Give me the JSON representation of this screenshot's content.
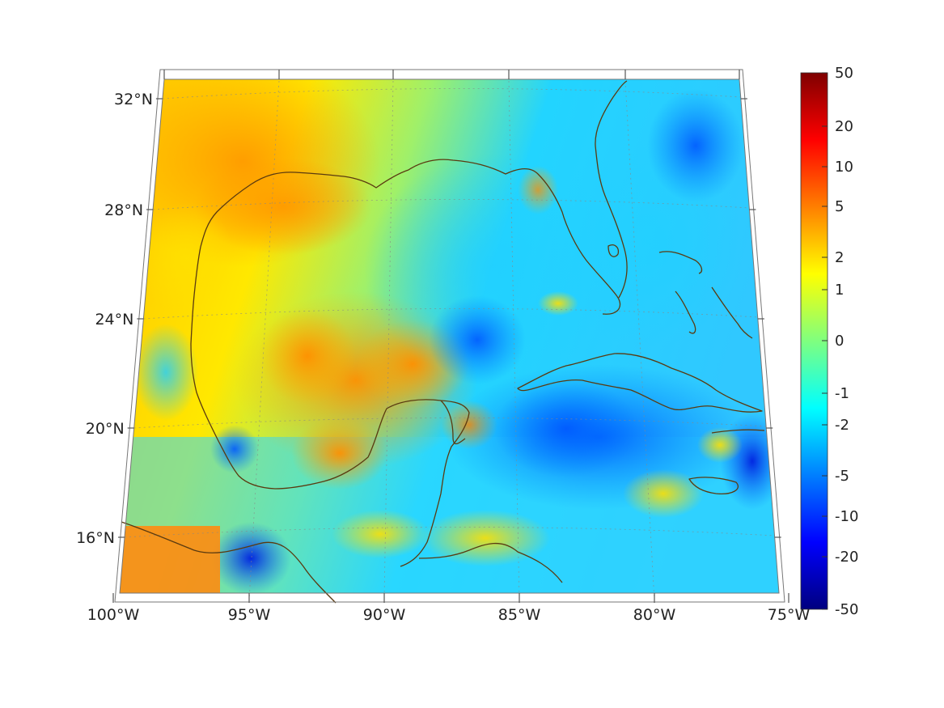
{
  "map": {
    "lat_labels": [
      "32°N",
      "28°N",
      "24°N",
      "20°N",
      "16°N"
    ],
    "lon_labels": [
      "100°W",
      "95°W",
      "90°W",
      "85°W",
      "80°W",
      "75°W"
    ],
    "coast_color": "#5a3a10",
    "grid_color": "#888888"
  },
  "colorbar": {
    "tick_labels": [
      "50",
      "20",
      "10",
      "5",
      "2",
      "1",
      "0",
      "-1",
      "-2",
      "-5",
      "-10",
      "-20",
      "-50"
    ],
    "colormap": "jet",
    "stops": [
      "#00007f",
      "#0000ff",
      "#007fff",
      "#00ffff",
      "#7fff7f",
      "#ffff00",
      "#ff7f00",
      "#ff0000",
      "#7f0000"
    ]
  }
}
